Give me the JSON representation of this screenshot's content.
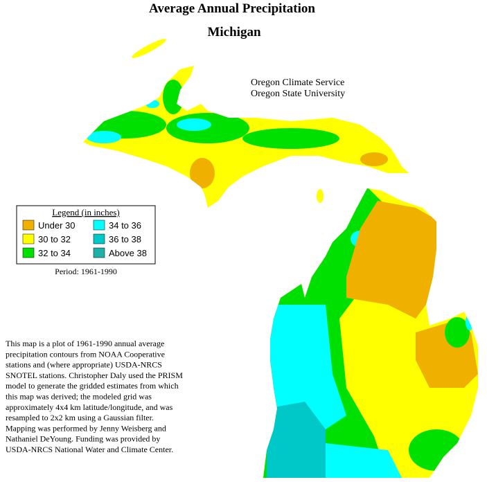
{
  "title": "Average Annual Precipitation",
  "subtitle": "Michigan",
  "credits": [
    "Oregon Climate Service",
    "Oregon State University"
  ],
  "legend": {
    "title": "Legend (in inches)",
    "items": [
      {
        "label": "Under 30",
        "color": "#f0b000"
      },
      {
        "label": "30 to 32",
        "color": "#ffff00"
      },
      {
        "label": "32 to 34",
        "color": "#00e000"
      },
      {
        "label": "34 to 36",
        "color": "#00ffff"
      },
      {
        "label": "36 to 38",
        "color": "#00c8c8"
      },
      {
        "label": "Above 38",
        "color": "#20b0a8"
      }
    ]
  },
  "period": "Period: 1961-1990",
  "description": [
    "This map is a plot of 1961-1990 annual average",
    "precipitation contours from NOAA Cooperative",
    "stations and (where appropriate) USDA-NRCS",
    "SNOTEL stations. Christopher Daly used the PRISM",
    "model to generate the gridded estimates from which",
    "this map was derived; the modeled grid was",
    "approximately 4x4 km latitude/longitude, and was",
    "resampled to 2x2 km using a Gaussian filter.",
    "Mapping was performed by Jenny Weisberg and",
    "Nathaniel DeYoung. Funding was provided by",
    "USDA-NRCS National Water and Climate Center."
  ]
}
